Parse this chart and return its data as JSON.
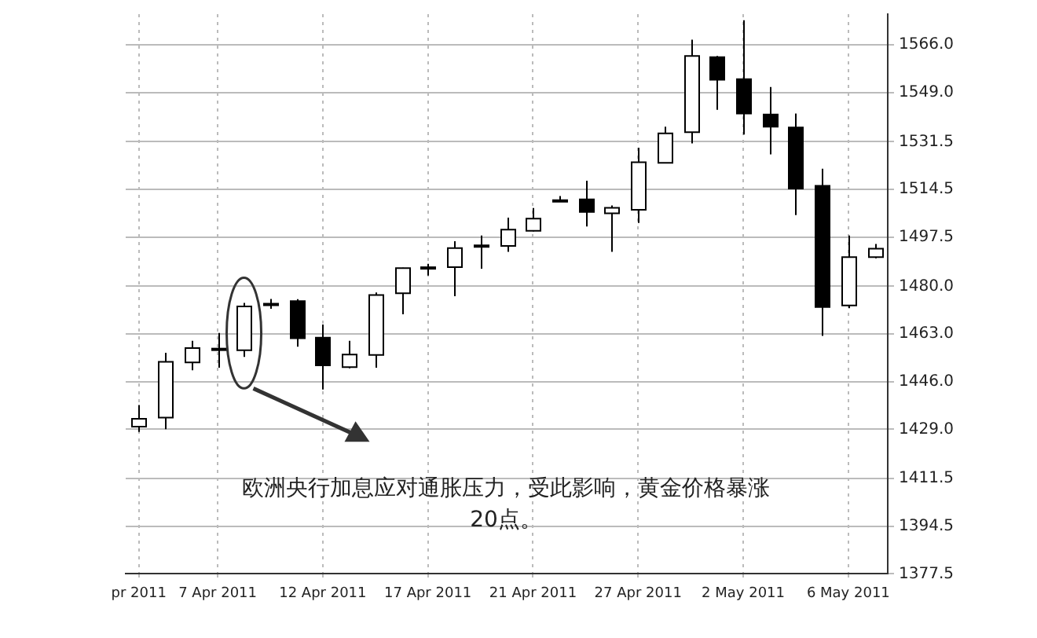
{
  "chart_data": {
    "type": "candlestick",
    "categories": [
      "pr 2011",
      null,
      null,
      "7 Apr 2011",
      null,
      null,
      null,
      "12 Apr 2011",
      null,
      null,
      null,
      "17 Apr 2011",
      null,
      null,
      null,
      "21 Apr 2011",
      null,
      null,
      null,
      "27 Apr 2011",
      null,
      null,
      null,
      "2 May 2011",
      null,
      null,
      null,
      "6 May 2011",
      null
    ],
    "ohlc": [
      [
        1430.0,
        1437.7,
        1428.1,
        1432.8
      ],
      [
        1433.2,
        1456.3,
        1429.1,
        1453.1
      ],
      [
        1452.9,
        1460.6,
        1450.1,
        1458.0
      ],
      [
        1457.4,
        1463.4,
        1451.0,
        1457.8
      ],
      [
        1457.2,
        1474.1,
        1454.8,
        1472.8
      ],
      [
        1473.5,
        1475.5,
        1472.0,
        1473.8
      ],
      [
        1474.7,
        1475.4,
        1458.5,
        1461.5
      ],
      [
        1461.7,
        1466.4,
        1443.2,
        1451.8
      ],
      [
        1451.2,
        1460.6,
        1450.8,
        1455.7
      ],
      [
        1455.5,
        1477.8,
        1451.0,
        1476.9
      ],
      [
        1477.5,
        1486.6,
        1470.0,
        1486.5
      ],
      [
        1486.6,
        1488.0,
        1483.8,
        1486.8
      ],
      [
        1486.8,
        1496.1,
        1476.5,
        1493.6
      ],
      [
        1494.2,
        1498.1,
        1486.3,
        1494.6
      ],
      [
        1494.4,
        1504.5,
        1492.3,
        1500.2
      ],
      [
        1499.8,
        1507.9,
        1499.6,
        1504.1
      ],
      [
        1510.5,
        1512.2,
        1510.1,
        1510.7
      ],
      [
        1511.0,
        1517.6,
        1501.3,
        1506.5
      ],
      [
        1506.0,
        1508.8,
        1492.3,
        1508.0
      ],
      [
        1507.3,
        1529.4,
        1502.6,
        1524.2
      ],
      [
        1524.0,
        1536.9,
        1523.8,
        1534.5
      ],
      [
        1534.9,
        1567.9,
        1530.9,
        1562.1
      ],
      [
        1561.7,
        1562.1,
        1542.9,
        1553.6
      ],
      [
        1553.8,
        1574.8,
        1534.1,
        1541.6
      ],
      [
        1541.2,
        1551.0,
        1527.0,
        1536.9
      ],
      [
        1536.6,
        1541.6,
        1505.4,
        1514.8
      ],
      [
        1515.8,
        1521.9,
        1462.3,
        1472.6
      ],
      [
        1473.2,
        1498.1,
        1472.2,
        1490.4
      ],
      [
        1490.4,
        1495.1,
        1490.0,
        1493.4
      ]
    ],
    "ylim": [
      1377.5,
      1577
    ],
    "yticks": [
      {
        "value": 1377.5,
        "label": "1377.5"
      },
      {
        "value": 1394.5,
        "label": "1394.5"
      },
      {
        "value": 1411.5,
        "label": "1411.5"
      },
      {
        "value": 1429,
        "label": "1429.0"
      },
      {
        "value": 1446,
        "label": "1446.0"
      },
      {
        "value": 1463,
        "label": "1463.0"
      },
      {
        "value": 1480,
        "label": "1480.0"
      },
      {
        "value": 1497.5,
        "label": "1497.5"
      },
      {
        "value": 1514.5,
        "label": "1514.5"
      },
      {
        "value": 1531.5,
        "label": "1531.5"
      },
      {
        "value": 1549,
        "label": "1549.0"
      },
      {
        "value": 1566,
        "label": "1566.0"
      }
    ],
    "grid": true,
    "annotations": [
      "欧洲央行加息应对通胀压力，受此影响，黄金价格暴涨20点。"
    ]
  }
}
